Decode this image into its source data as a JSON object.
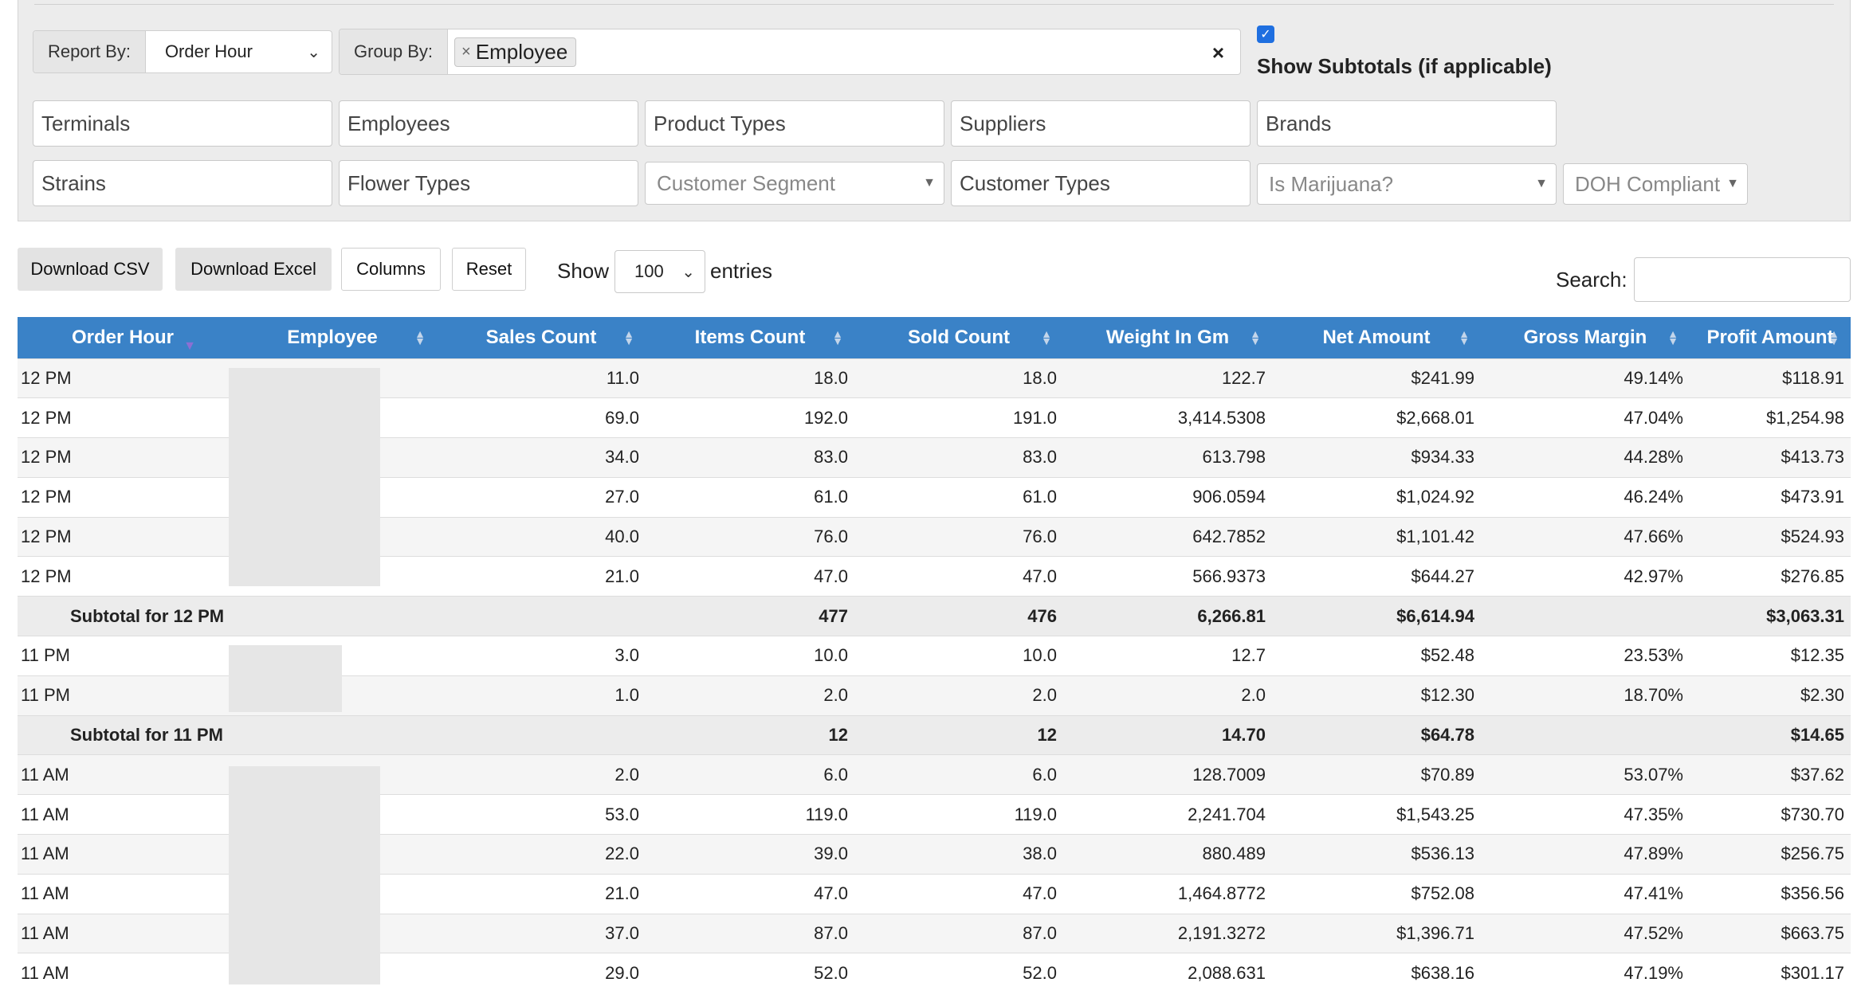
{
  "filters": {
    "report_by_label": "Report By:",
    "report_by_value": "Order Hour",
    "group_by_label": "Group By:",
    "group_by_chip": "Employee",
    "show_subtotals_label": "Show Subtotals (if applicable)",
    "row1": [
      "Terminals",
      "Employees",
      "Product Types",
      "Suppliers",
      "Brands"
    ],
    "row2_text": [
      "Strains",
      "Flower Types"
    ],
    "customer_segment": "Customer Segment",
    "customer_types": "Customer Types",
    "is_marijuana": "Is Marijuana?",
    "doh_compliant": "DOH Compliant"
  },
  "toolbar": {
    "download_csv": "Download CSV",
    "download_excel": "Download Excel",
    "columns": "Columns",
    "reset": "Reset",
    "show": "Show",
    "entries_value": "100",
    "entries": "entries",
    "search_label": "Search:"
  },
  "table": {
    "headers": [
      "Order Hour",
      "Employee",
      "Sales Count",
      "Items Count",
      "Sold Count",
      "Weight In Gm",
      "Net Amount",
      "Gross Margin",
      "Profit Amount"
    ],
    "rows": [
      {
        "type": "data",
        "hour": "12 PM",
        "cells": [
          "11.0",
          "18.0",
          "18.0",
          "122.7",
          "$241.99",
          "49.14%",
          "$118.91"
        ]
      },
      {
        "type": "data",
        "hour": "12 PM",
        "cells": [
          "69.0",
          "192.0",
          "191.0",
          "3,414.5308",
          "$2,668.01",
          "47.04%",
          "$1,254.98"
        ]
      },
      {
        "type": "data",
        "hour": "12 PM",
        "cells": [
          "34.0",
          "83.0",
          "83.0",
          "613.798",
          "$934.33",
          "44.28%",
          "$413.73"
        ]
      },
      {
        "type": "data",
        "hour": "12 PM",
        "cells": [
          "27.0",
          "61.0",
          "61.0",
          "906.0594",
          "$1,024.92",
          "46.24%",
          "$473.91"
        ]
      },
      {
        "type": "data",
        "hour": "12 PM",
        "cells": [
          "40.0",
          "76.0",
          "76.0",
          "642.7852",
          "$1,101.42",
          "47.66%",
          "$524.93"
        ]
      },
      {
        "type": "data",
        "hour": "12 PM",
        "cells": [
          "21.0",
          "47.0",
          "47.0",
          "566.9373",
          "$644.27",
          "42.97%",
          "$276.85"
        ]
      },
      {
        "type": "subtotal",
        "label": "Subtotal for 12 PM",
        "cells": [
          "",
          "477",
          "476",
          "6,266.81",
          "$6,614.94",
          "",
          "$3,063.31"
        ]
      },
      {
        "type": "data",
        "hour": "11 PM",
        "cells": [
          "3.0",
          "10.0",
          "10.0",
          "12.7",
          "$52.48",
          "23.53%",
          "$12.35"
        ]
      },
      {
        "type": "data",
        "hour": "11 PM",
        "cells": [
          "1.0",
          "2.0",
          "2.0",
          "2.0",
          "$12.30",
          "18.70%",
          "$2.30"
        ]
      },
      {
        "type": "subtotal",
        "label": "Subtotal for 11 PM",
        "cells": [
          "",
          "12",
          "12",
          "14.70",
          "$64.78",
          "",
          "$14.65"
        ]
      },
      {
        "type": "data",
        "hour": "11 AM",
        "cells": [
          "2.0",
          "6.0",
          "6.0",
          "128.7009",
          "$70.89",
          "53.07%",
          "$37.62"
        ]
      },
      {
        "type": "data",
        "hour": "11 AM",
        "cells": [
          "53.0",
          "119.0",
          "119.0",
          "2,241.704",
          "$1,543.25",
          "47.35%",
          "$730.70"
        ]
      },
      {
        "type": "data",
        "hour": "11 AM",
        "cells": [
          "22.0",
          "39.0",
          "38.0",
          "880.489",
          "$536.13",
          "47.89%",
          "$256.75"
        ]
      },
      {
        "type": "data",
        "hour": "11 AM",
        "cells": [
          "21.0",
          "47.0",
          "47.0",
          "1,464.8772",
          "$752.08",
          "47.41%",
          "$356.56"
        ]
      },
      {
        "type": "data",
        "hour": "11 AM",
        "cells": [
          "37.0",
          "87.0",
          "87.0",
          "2,191.3272",
          "$1,396.71",
          "47.52%",
          "$663.75"
        ]
      },
      {
        "type": "data",
        "hour": "11 AM",
        "cells": [
          "29.0",
          "52.0",
          "52.0",
          "2,088.631",
          "$638.16",
          "47.19%",
          "$301.17"
        ]
      }
    ]
  },
  "colors": {
    "header_bg": "#3a82c7",
    "checkbox": "#1f6fe0",
    "panel_bg": "#ececec"
  }
}
